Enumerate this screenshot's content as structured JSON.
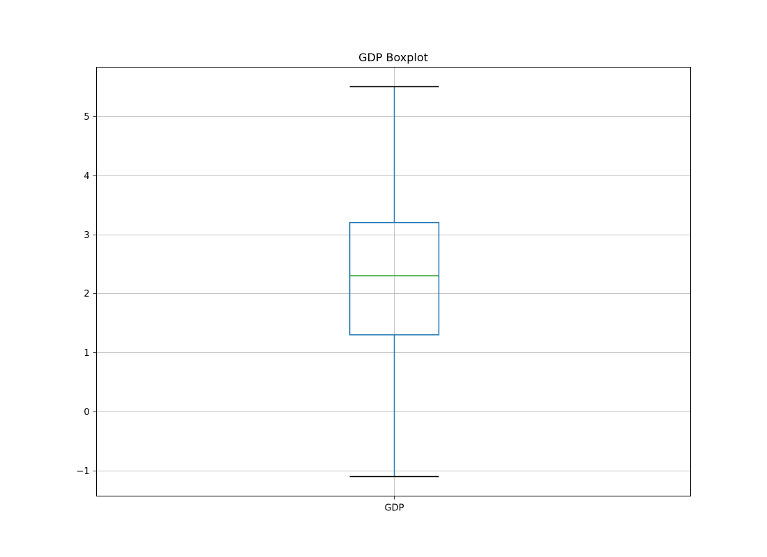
{
  "chart_data": {
    "type": "box",
    "title": "GDP Boxplot",
    "xlabel": "",
    "ylabel": "",
    "categories": [
      "GDP"
    ],
    "boxes": [
      {
        "category": "GDP",
        "whisker_low": -1.1,
        "q1": 1.3,
        "median": 2.3,
        "q3": 3.2,
        "whisker_high": 5.5
      }
    ],
    "ylim": [
      -1.43,
      5.83
    ],
    "yticks": [
      -1,
      0,
      1,
      2,
      3,
      4,
      5
    ],
    "ytick_labels": [
      "−1",
      "0",
      "1",
      "2",
      "3",
      "4",
      "5"
    ],
    "grid": true,
    "colors": {
      "box": "#1f77b4",
      "whisker": "#1f77b4",
      "cap": "#000000",
      "median": "#2ca02c",
      "grid": "#b0b0b0",
      "frame": "#000000"
    }
  }
}
